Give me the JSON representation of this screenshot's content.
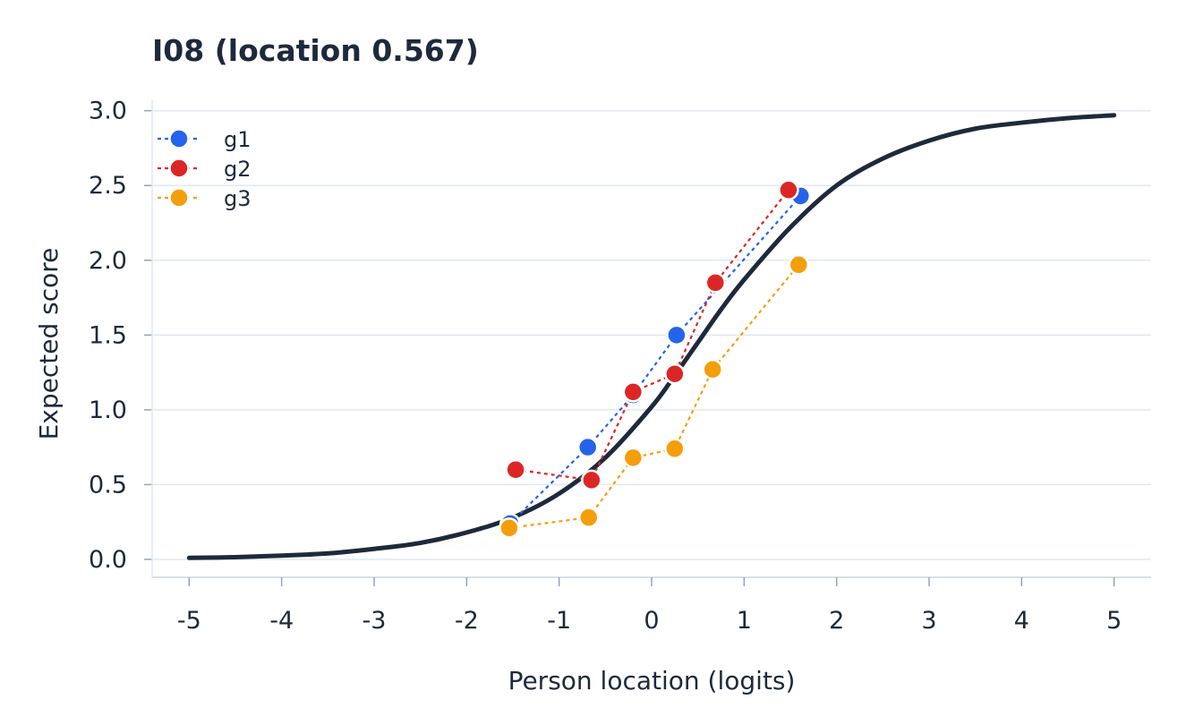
{
  "chart_data": {
    "type": "line",
    "title": "I08  (location 0.567)",
    "xlabel": "Person location (logits)",
    "ylabel": "Expected score",
    "xlim": [
      -5.4,
      5.4
    ],
    "ylim": [
      -0.12,
      3.07
    ],
    "xticks": [
      -5,
      -4,
      -3,
      -2,
      -1,
      0,
      1,
      2,
      3,
      4,
      5
    ],
    "xtick_labels": [
      "-5",
      "-4",
      "-3",
      "-2",
      "-1",
      "0",
      "1",
      "2",
      "3",
      "4",
      "5"
    ],
    "yticks": [
      0.0,
      0.5,
      1.0,
      1.5,
      2.0,
      2.5,
      3.0
    ],
    "ytick_labels": [
      "0.0",
      "0.5",
      "1.0",
      "1.5",
      "2.0",
      "2.5",
      "3.0"
    ],
    "grid": "horizontal",
    "legend_position": "top-left",
    "curve": {
      "color": "#1e293b",
      "x": [
        -5.0,
        -4.5,
        -4.0,
        -3.5,
        -3.0,
        -2.5,
        -2.0,
        -1.5,
        -1.0,
        -0.5,
        0.0,
        0.25,
        0.5,
        0.75,
        1.0,
        1.5,
        2.0,
        2.5,
        3.0,
        3.5,
        4.0,
        4.5,
        5.0
      ],
      "y": [
        0.01,
        0.015,
        0.025,
        0.04,
        0.07,
        0.11,
        0.18,
        0.28,
        0.44,
        0.68,
        1.02,
        1.23,
        1.45,
        1.67,
        1.87,
        2.22,
        2.5,
        2.68,
        2.8,
        2.88,
        2.92,
        2.95,
        2.97
      ]
    },
    "series": [
      {
        "name": "g1",
        "color": "#2563eb",
        "x": [
          -1.53,
          -0.69,
          -0.2,
          0.27,
          1.61
        ],
        "y": [
          0.24,
          0.75,
          1.1,
          1.5,
          2.43
        ]
      },
      {
        "name": "g2",
        "color": "#dc2626",
        "x": [
          -1.47,
          -0.65,
          -0.2,
          0.25,
          0.69,
          1.48
        ],
        "y": [
          0.6,
          0.53,
          1.12,
          1.24,
          1.85,
          2.47
        ]
      },
      {
        "name": "g3",
        "color": "#f59e0b",
        "x": [
          -1.54,
          -0.68,
          -0.2,
          0.25,
          0.66,
          1.59
        ],
        "y": [
          0.21,
          0.28,
          0.68,
          0.74,
          1.27,
          1.97
        ]
      }
    ]
  }
}
